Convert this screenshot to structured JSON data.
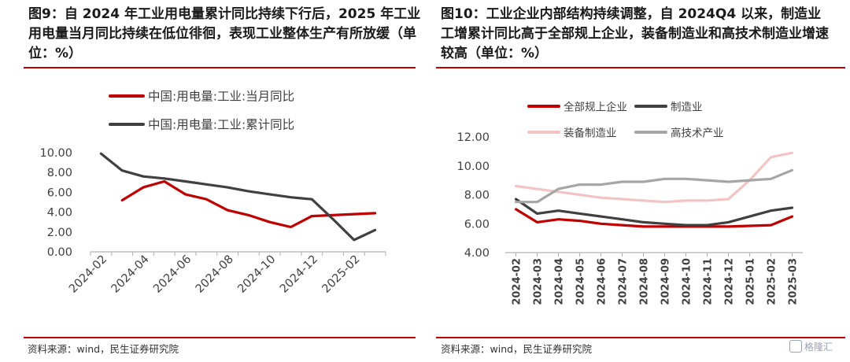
{
  "left": {
    "title": "图9：自 2024 年工业用电量累计同比持续下行后，2025 年工业用电量当月同比持续在低位徘徊，表现工业整体生产有所放缓（单位：%）",
    "source": "资料来源：wind，民生证券研究院"
  },
  "right": {
    "title": "图10：工业企业内部结构持续调整，自 2024Q4 以来，制造业工增累计同比高于全部规上企业，装备制造业和高技术制造业增速较高（单位：%）",
    "source": "资料来源：wind，民生证券研究院"
  },
  "watermark": {
    "text": "格隆汇"
  },
  "chart_data": [
    {
      "type": "line",
      "title": "",
      "xlabel": "",
      "ylabel": "",
      "ylim": [
        0,
        10
      ],
      "yticks": [
        "0.00",
        "2.00",
        "4.00",
        "6.00",
        "8.00",
        "10.00"
      ],
      "xticks": [
        "2024-02",
        "2024-04",
        "2024-06",
        "2024-08",
        "2024-10",
        "2024-12",
        "2025-02"
      ],
      "x": [
        "2024-02",
        "2024-03",
        "2024-04",
        "2024-05",
        "2024-06",
        "2024-07",
        "2024-08",
        "2024-09",
        "2024-10",
        "2024-11",
        "2024-12",
        "2025-01",
        "2025-02",
        "2025-03"
      ],
      "legend": "top",
      "grid": false,
      "series": [
        {
          "name": "中国:用电量:工业:当月同比",
          "color": "#c00000",
          "values": [
            null,
            5.2,
            6.5,
            7.1,
            5.8,
            5.3,
            4.2,
            3.7,
            3.0,
            2.5,
            3.6,
            3.7,
            3.8,
            3.9
          ]
        },
        {
          "name": "中国:用电量:工业:累计同比",
          "color": "#404040",
          "values": [
            9.9,
            8.2,
            7.6,
            7.4,
            7.1,
            6.8,
            6.5,
            6.1,
            5.8,
            5.5,
            5.3,
            3.3,
            1.2,
            2.2
          ]
        }
      ]
    },
    {
      "type": "line",
      "title": "",
      "xlabel": "",
      "ylabel": "",
      "ylim": [
        4,
        12
      ],
      "yticks": [
        "4.00",
        "6.00",
        "8.00",
        "10.00",
        "12.00"
      ],
      "x": [
        "2024-02",
        "2024-03",
        "2024-04",
        "2024-05",
        "2024-06",
        "2024-07",
        "2024-08",
        "2024-09",
        "2024-10",
        "2024-11",
        "2024-12",
        "2025-01",
        "2025-02",
        "2025-03"
      ],
      "legend": "top",
      "grid": false,
      "series": [
        {
          "name": "全部规上企业",
          "color": "#c00000",
          "values": [
            7.0,
            6.1,
            6.3,
            6.2,
            6.0,
            5.9,
            5.8,
            5.8,
            5.8,
            5.8,
            5.8,
            5.85,
            5.9,
            6.5
          ]
        },
        {
          "name": "制造业",
          "color": "#404040",
          "values": [
            7.7,
            6.7,
            6.9,
            6.7,
            6.5,
            6.3,
            6.1,
            6.0,
            5.9,
            5.9,
            6.1,
            6.5,
            6.9,
            7.1
          ]
        },
        {
          "name": "装备制造业",
          "color": "#f2c4c4",
          "values": [
            8.6,
            8.4,
            8.2,
            8.0,
            7.8,
            7.7,
            7.6,
            7.5,
            7.6,
            7.6,
            7.7,
            9.0,
            10.6,
            10.9
          ]
        },
        {
          "name": "高技术产业",
          "color": "#a6a6a6",
          "values": [
            7.5,
            7.5,
            8.4,
            8.7,
            8.7,
            8.9,
            8.9,
            9.1,
            9.1,
            9.0,
            8.9,
            9.0,
            9.1,
            9.7
          ]
        }
      ]
    }
  ]
}
